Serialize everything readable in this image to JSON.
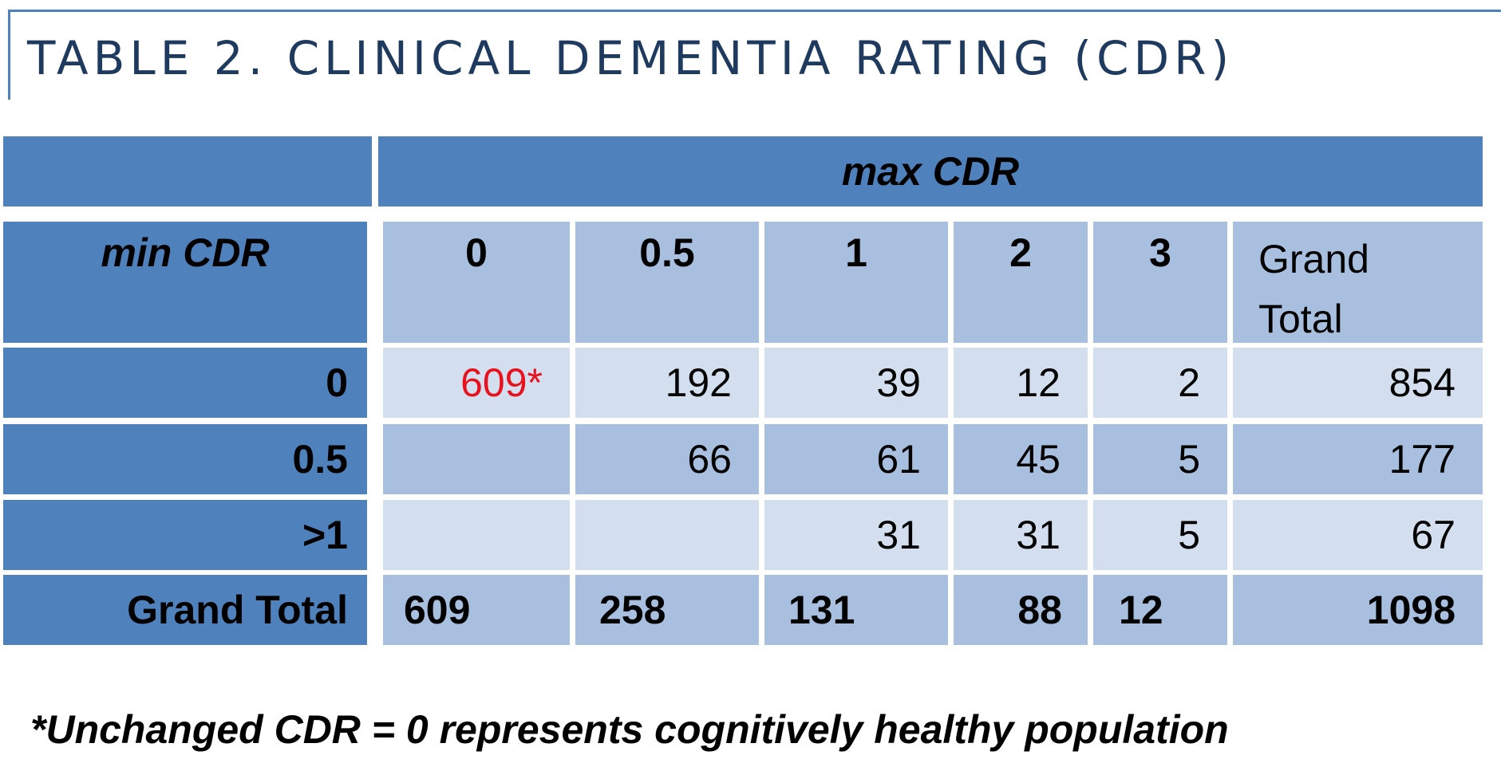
{
  "title": "TABLE 2. CLINICAL DEMENTIA RATING (CDR)",
  "table": {
    "top_header": "max CDR",
    "row_header_label": "min CDR",
    "columns": [
      "0",
      "0.5",
      "1",
      "2",
      "3",
      "Grand Total"
    ],
    "grand_total_header_line1": "Grand",
    "grand_total_header_line2": "Total",
    "rows": [
      {
        "label": "0",
        "cells": [
          "609*",
          "192",
          "39",
          "12",
          "2",
          "854"
        ]
      },
      {
        "label": "0.5",
        "cells": [
          "",
          "66",
          "61",
          "45",
          "5",
          "177"
        ]
      },
      {
        "label": ">1",
        "cells": [
          "",
          "",
          "31",
          "31",
          "5",
          "67"
        ]
      },
      {
        "label": "Grand Total",
        "cells": [
          "609",
          "258",
          "131",
          "88",
          "12",
          "1098"
        ]
      }
    ]
  },
  "highlight_color": "#e8121e",
  "colors": {
    "dark_blue": "#4f81bd",
    "mid_blue": "#a9bfdf",
    "light_blue": "#d3dfee",
    "title_color": "#1f3a5f"
  },
  "footnote": "*Unchanged CDR = 0 represents cognitively healthy population"
}
